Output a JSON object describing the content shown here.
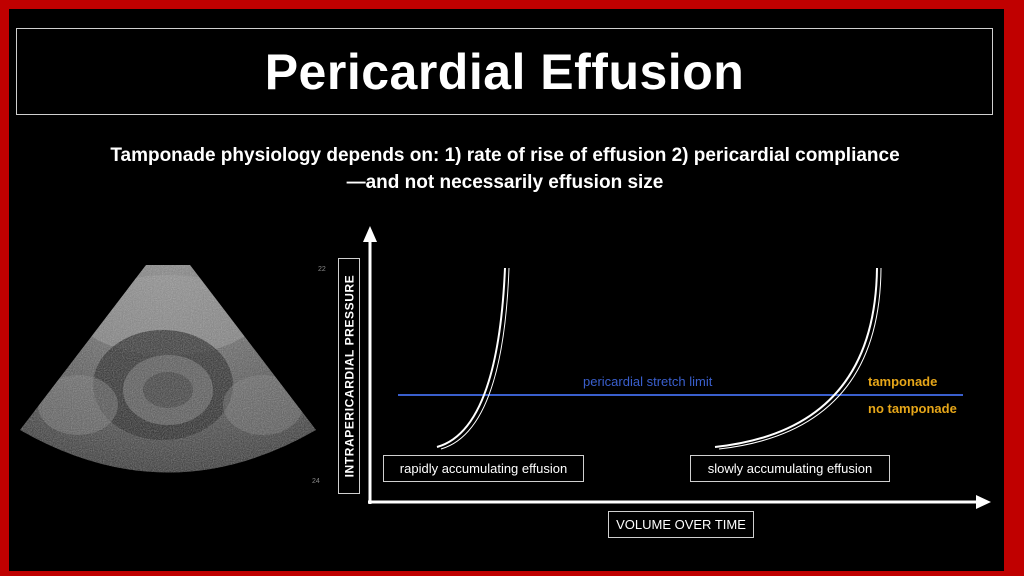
{
  "title": "Pericardial Effusion",
  "subtitle_line1": "Tamponade physiology depends on: 1) rate of rise of effusion 2) pericardial compliance",
  "subtitle_line2": "—and not necessarily effusion size",
  "ultrasound": {
    "tick_top": "22",
    "tick_bottom": "24"
  },
  "diagram": {
    "y_axis_label": "INTRAPERICARDIAL PRESSURE",
    "x_axis_label": "VOLUME OVER TIME",
    "stretch_limit_label": "pericardial stretch limit",
    "above_label": "tamponade",
    "below_label": "no tamponade",
    "curve_rapid_label": "rapidly accumulating effusion",
    "curve_slow_label": "slowly accumulating effusion"
  },
  "colors": {
    "frame": "#c00000",
    "stretch_line": "#3a5fcd",
    "tamponade_text": "#e6a619"
  }
}
